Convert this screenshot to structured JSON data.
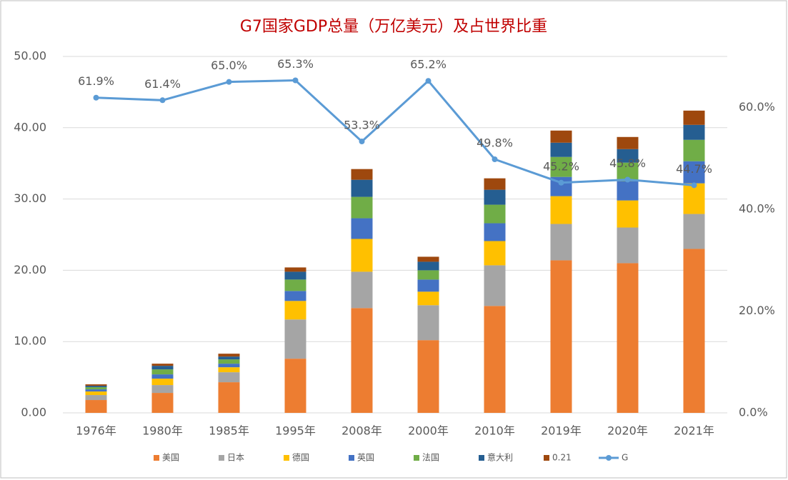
{
  "chart_data": {
    "type": "stacked-bar-line",
    "title": "G7国家GDP总量（万亿美元）及占世界比重",
    "categories": [
      "1976年",
      "1980年",
      "1985年",
      "1995年",
      "2008年",
      "2000年",
      "2010年",
      "2019年",
      "2020年",
      "2021年"
    ],
    "series": [
      {
        "name": "美国",
        "type": "bar",
        "color": "#ed7d31",
        "values": [
          1.8,
          2.8,
          4.3,
          7.6,
          14.7,
          10.2,
          15.0,
          21.4,
          21.0,
          23.0
        ]
      },
      {
        "name": "日本",
        "type": "bar",
        "color": "#a5a5a5",
        "values": [
          0.7,
          1.1,
          1.4,
          5.5,
          5.1,
          4.9,
          5.7,
          5.1,
          5.0,
          4.9
        ]
      },
      {
        "name": "德国",
        "type": "bar",
        "color": "#ffc000",
        "values": [
          0.5,
          0.9,
          0.7,
          2.6,
          4.6,
          1.9,
          3.4,
          3.9,
          3.8,
          4.3
        ]
      },
      {
        "name": "英国",
        "type": "bar",
        "color": "#4472c4",
        "values": [
          0.3,
          0.6,
          0.5,
          1.4,
          2.9,
          1.7,
          2.5,
          2.7,
          2.7,
          3.1
        ]
      },
      {
        "name": "法国",
        "type": "bar",
        "color": "#70ad47",
        "values": [
          0.3,
          0.7,
          0.6,
          1.6,
          3.0,
          1.3,
          2.6,
          2.8,
          2.6,
          3.0
        ]
      },
      {
        "name": "意大利",
        "type": "bar",
        "color": "#255e91",
        "values": [
          0.2,
          0.5,
          0.4,
          1.1,
          2.4,
          1.2,
          2.1,
          2.0,
          1.9,
          2.1
        ]
      },
      {
        "name": "0.21",
        "type": "bar",
        "color": "#9e480e",
        "values": [
          0.2,
          0.3,
          0.4,
          0.6,
          1.5,
          0.7,
          1.6,
          1.7,
          1.7,
          2.0
        ]
      },
      {
        "name": "G",
        "type": "line",
        "axis": "y2",
        "color": "#5b9bd5",
        "values": [
          61.9,
          61.4,
          65.0,
          65.3,
          53.3,
          65.2,
          49.8,
          45.2,
          45.8,
          44.7
        ],
        "value_labels": [
          "61.9%",
          "61.4%",
          "65.0%",
          "65.3%",
          "53.3%",
          "65.2%",
          "49.8%",
          "45.2%",
          "45.8%",
          "44.7%"
        ]
      }
    ],
    "ylim": [
      0,
      50
    ],
    "yticks": [
      {
        "value": 0,
        "label": "0.00"
      },
      {
        "value": 10,
        "label": "10.00"
      },
      {
        "value": 20,
        "label": "20.00"
      },
      {
        "value": 30,
        "label": "30.00"
      },
      {
        "value": 40,
        "label": "40.00"
      },
      {
        "value": 50,
        "label": "50.00"
      }
    ],
    "y2lim": [
      0,
      70
    ],
    "y2ticks": [
      {
        "value": 0,
        "label": "0.0%"
      },
      {
        "value": 20,
        "label": "20.0%"
      },
      {
        "value": 40,
        "label": "40.0%"
      },
      {
        "value": 60,
        "label": "60.0%"
      }
    ],
    "grid": true,
    "legend": "bottom"
  }
}
